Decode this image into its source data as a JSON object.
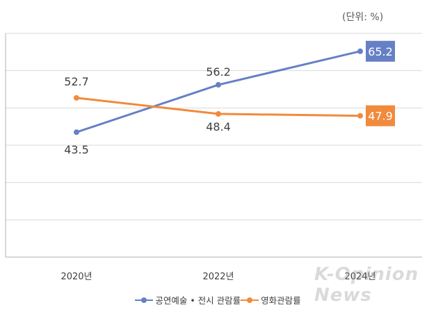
{
  "unit_label": "(단위: %)",
  "watermark_text": "K-Opinion News",
  "chart_data": {
    "type": "line",
    "categories": [
      "2020년",
      "2022년",
      "2024년"
    ],
    "series": [
      {
        "name": "공연예술 • 전시 관람률",
        "values": [
          43.5,
          56.2,
          65.2
        ],
        "color": "#6680C5"
      },
      {
        "name": "영화관람률",
        "values": [
          52.7,
          48.4,
          47.9
        ],
        "color": "#F08A3C"
      }
    ],
    "data_labels": [
      [
        "43.5",
        "56.2",
        "65.2"
      ],
      [
        "52.7",
        "48.4",
        "47.9"
      ]
    ],
    "ylim": [
      10,
      70
    ],
    "grid": true,
    "legend_position": "bottom"
  }
}
